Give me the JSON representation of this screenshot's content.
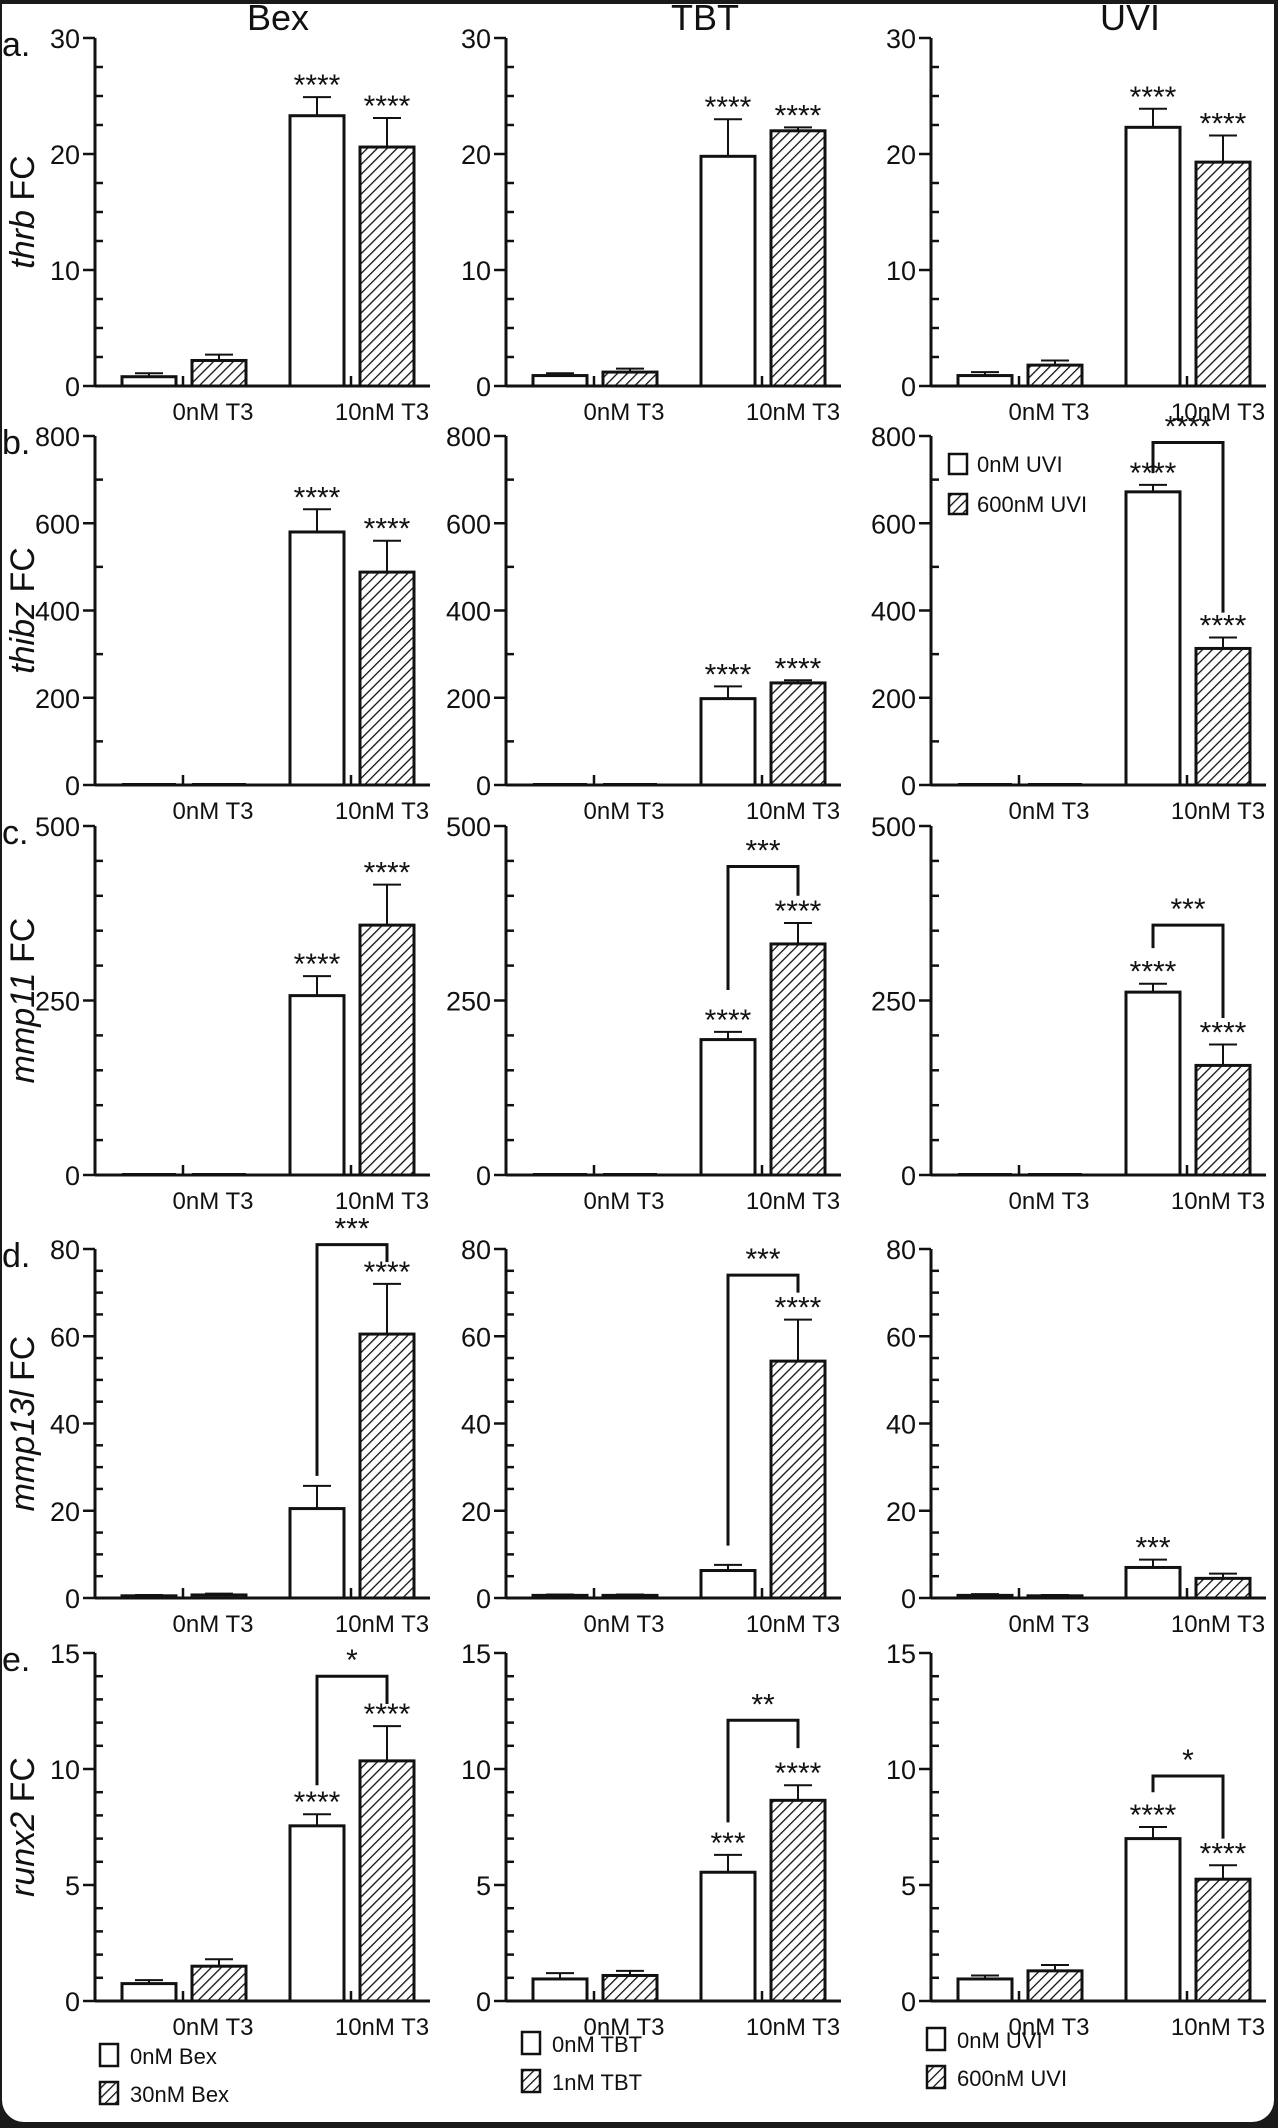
{
  "figure": {
    "column_titles": [
      "Bex",
      "TBT",
      "UVI"
    ],
    "row_labels": [
      "a.",
      "b.",
      "c.",
      "d.",
      "e."
    ],
    "x_categories": [
      "0nM T3",
      "10nM T3"
    ]
  },
  "legends": [
    {
      "items": [
        "0nM Bex",
        "30nM Bex"
      ]
    },
    {
      "items": [
        "0nM TBT",
        "1nM TBT"
      ]
    },
    {
      "items": [
        "0nM UVI",
        "600nM UVI"
      ]
    }
  ],
  "inset_legend": {
    "items": [
      "0nM UVI",
      "600nM UVI"
    ]
  },
  "chart_data": [
    {
      "type": "bar",
      "row": "a",
      "column": "Bex",
      "ylabel_gene": "thrb",
      "ylabel_suffix": " FC",
      "ylim": [
        0,
        30
      ],
      "yticks": [
        0,
        10,
        20,
        30
      ],
      "minor_step": 2.5,
      "categories": [
        "0nM T3",
        "10nM T3"
      ],
      "series": [
        {
          "name": "0nM Bex",
          "values": [
            0.8,
            23.3
          ],
          "errors": [
            0.3,
            1.6
          ]
        },
        {
          "name": "30nM Bex",
          "values": [
            2.2,
            20.6
          ],
          "errors": [
            0.5,
            2.5
          ]
        }
      ],
      "annotations": [
        {
          "category": 1,
          "series": 0,
          "text": "****"
        },
        {
          "category": 1,
          "series": 1,
          "text": "****"
        }
      ],
      "brackets": []
    },
    {
      "type": "bar",
      "row": "a",
      "column": "TBT",
      "ylabel_gene": "",
      "ylabel_suffix": "",
      "ylim": [
        0,
        30
      ],
      "yticks": [
        0,
        10,
        20,
        30
      ],
      "minor_step": 2.5,
      "categories": [
        "0nM T3",
        "10nM T3"
      ],
      "series": [
        {
          "name": "0nM TBT",
          "values": [
            0.9,
            19.8
          ],
          "errors": [
            0.2,
            3.2
          ]
        },
        {
          "name": "1nM TBT",
          "values": [
            1.2,
            22.0
          ],
          "errors": [
            0.3,
            0.3
          ]
        }
      ],
      "annotations": [
        {
          "category": 1,
          "series": 0,
          "text": "****"
        },
        {
          "category": 1,
          "series": 1,
          "text": "****"
        }
      ],
      "brackets": []
    },
    {
      "type": "bar",
      "row": "a",
      "column": "UVI",
      "ylabel_gene": "",
      "ylabel_suffix": "",
      "ylim": [
        0,
        30
      ],
      "yticks": [
        0,
        10,
        20,
        30
      ],
      "minor_step": 2.5,
      "categories": [
        "0nM T3",
        "10nM T3"
      ],
      "series": [
        {
          "name": "0nM UVI",
          "values": [
            0.9,
            22.3
          ],
          "errors": [
            0.3,
            1.6
          ]
        },
        {
          "name": "600nM UVI",
          "values": [
            1.8,
            19.3
          ],
          "errors": [
            0.4,
            2.3
          ]
        }
      ],
      "annotations": [
        {
          "category": 1,
          "series": 0,
          "text": "****"
        },
        {
          "category": 1,
          "series": 1,
          "text": "****"
        }
      ],
      "brackets": []
    },
    {
      "type": "bar",
      "row": "b",
      "column": "Bex",
      "ylabel_gene": "thibz",
      "ylabel_suffix": " FC",
      "ylim": [
        0,
        800
      ],
      "yticks": [
        0,
        200,
        400,
        600,
        800
      ],
      "minor_step": 100,
      "categories": [
        "0nM T3",
        "10nM T3"
      ],
      "series": [
        {
          "name": "0nM Bex",
          "values": [
            1,
            580
          ],
          "errors": [
            0,
            52
          ]
        },
        {
          "name": "30nM Bex",
          "values": [
            1,
            488
          ],
          "errors": [
            0,
            72
          ]
        }
      ],
      "annotations": [
        {
          "category": 1,
          "series": 0,
          "text": "****"
        },
        {
          "category": 1,
          "series": 1,
          "text": "****"
        }
      ],
      "brackets": []
    },
    {
      "type": "bar",
      "row": "b",
      "column": "TBT",
      "ylabel_gene": "",
      "ylabel_suffix": "",
      "ylim": [
        0,
        800
      ],
      "yticks": [
        0,
        200,
        400,
        600,
        800
      ],
      "minor_step": 100,
      "categories": [
        "0nM T3",
        "10nM T3"
      ],
      "series": [
        {
          "name": "0nM TBT",
          "values": [
            1,
            198
          ],
          "errors": [
            0,
            28
          ]
        },
        {
          "name": "1nM TBT",
          "values": [
            1,
            234
          ],
          "errors": [
            0,
            6
          ]
        }
      ],
      "annotations": [
        {
          "category": 1,
          "series": 0,
          "text": "****"
        },
        {
          "category": 1,
          "series": 1,
          "text": "****"
        }
      ],
      "brackets": []
    },
    {
      "type": "bar",
      "row": "b",
      "column": "UVI",
      "ylabel_gene": "",
      "ylabel_suffix": "",
      "ylim": [
        0,
        800
      ],
      "yticks": [
        0,
        200,
        400,
        600,
        800
      ],
      "minor_step": 100,
      "categories": [
        "0nM T3",
        "10nM T3"
      ],
      "series": [
        {
          "name": "0nM UVI",
          "values": [
            1,
            672
          ],
          "errors": [
            0,
            16
          ]
        },
        {
          "name": "600nM UVI",
          "values": [
            1,
            313
          ],
          "errors": [
            0,
            25
          ]
        }
      ],
      "annotations": [
        {
          "category": 1,
          "series": 0,
          "text": "****"
        },
        {
          "category": 1,
          "series": 1,
          "text": "****"
        }
      ],
      "brackets": [
        {
          "text": "****",
          "y": 785,
          "left_end": 715,
          "right_end": 395
        }
      ],
      "legend": "top-left"
    },
    {
      "type": "bar",
      "row": "c",
      "column": "Bex",
      "ylabel_gene": "mmp11",
      "ylabel_suffix": " FC",
      "ylim": [
        0,
        500
      ],
      "yticks": [
        0,
        250,
        500
      ],
      "minor_step": 50,
      "categories": [
        "0nM T3",
        "10nM T3"
      ],
      "series": [
        {
          "name": "0nM Bex",
          "values": [
            1,
            257
          ],
          "errors": [
            0,
            28
          ]
        },
        {
          "name": "30nM Bex",
          "values": [
            2,
            358
          ],
          "errors": [
            0,
            58
          ]
        }
      ],
      "annotations": [
        {
          "category": 1,
          "series": 0,
          "text": "****"
        },
        {
          "category": 1,
          "series": 1,
          "text": "****"
        }
      ],
      "brackets": []
    },
    {
      "type": "bar",
      "row": "c",
      "column": "TBT",
      "ylabel_gene": "",
      "ylabel_suffix": "",
      "ylim": [
        0,
        500
      ],
      "yticks": [
        0,
        250,
        500
      ],
      "minor_step": 50,
      "categories": [
        "0nM T3",
        "10nM T3"
      ],
      "series": [
        {
          "name": "0nM TBT",
          "values": [
            1,
            194
          ],
          "errors": [
            0,
            11
          ]
        },
        {
          "name": "1nM TBT",
          "values": [
            0,
            331
          ],
          "errors": [
            0,
            30
          ]
        }
      ],
      "annotations": [
        {
          "category": 1,
          "series": 0,
          "text": "****"
        },
        {
          "category": 1,
          "series": 1,
          "text": "****"
        }
      ],
      "brackets": [
        {
          "text": "***",
          "y": 442,
          "left_end": 265,
          "right_end": 400
        }
      ]
    },
    {
      "type": "bar",
      "row": "c",
      "column": "UVI",
      "ylabel_gene": "",
      "ylabel_suffix": "",
      "ylim": [
        0,
        500
      ],
      "yticks": [
        0,
        250,
        500
      ],
      "minor_step": 50,
      "categories": [
        "0nM T3",
        "10nM T3"
      ],
      "series": [
        {
          "name": "0nM UVI",
          "values": [
            1,
            262
          ],
          "errors": [
            0,
            12
          ]
        },
        {
          "name": "600nM UVI",
          "values": [
            1,
            157
          ],
          "errors": [
            0,
            30
          ]
        }
      ],
      "annotations": [
        {
          "category": 1,
          "series": 0,
          "text": "****"
        },
        {
          "category": 1,
          "series": 1,
          "text": "****"
        }
      ],
      "brackets": [
        {
          "text": "***",
          "y": 358,
          "left_end": 325,
          "right_end": 225
        }
      ]
    },
    {
      "type": "bar",
      "row": "d",
      "column": "Bex",
      "ylabel_gene": "mmp13l",
      "ylabel_suffix": " FC",
      "ylim": [
        0,
        80
      ],
      "yticks": [
        0,
        20,
        40,
        60,
        80
      ],
      "minor_step": 5,
      "categories": [
        "0nM T3",
        "10nM T3"
      ],
      "series": [
        {
          "name": "0nM Bex",
          "values": [
            0.5,
            20.5
          ],
          "errors": [
            0.2,
            5.2
          ]
        },
        {
          "name": "30nM Bex",
          "values": [
            0.7,
            60.5
          ],
          "errors": [
            0.3,
            11.5
          ]
        }
      ],
      "annotations": [
        {
          "category": 1,
          "series": 0,
          "text": ""
        },
        {
          "category": 1,
          "series": 1,
          "text": "****"
        }
      ],
      "brackets": [
        {
          "text": "***",
          "y": 81,
          "left_end": 28,
          "right_end": 77
        }
      ]
    },
    {
      "type": "bar",
      "row": "d",
      "column": "TBT",
      "ylabel_gene": "",
      "ylabel_suffix": "",
      "ylim": [
        0,
        80
      ],
      "yticks": [
        0,
        20,
        40,
        60,
        80
      ],
      "minor_step": 5,
      "categories": [
        "0nM T3",
        "10nM T3"
      ],
      "series": [
        {
          "name": "0nM TBT",
          "values": [
            0.6,
            6.3
          ],
          "errors": [
            0.2,
            1.3
          ]
        },
        {
          "name": "1nM TBT",
          "values": [
            0.6,
            54.3
          ],
          "errors": [
            0.2,
            9.5
          ]
        }
      ],
      "annotations": [
        {
          "category": 1,
          "series": 0,
          "text": ""
        },
        {
          "category": 1,
          "series": 1,
          "text": "****"
        }
      ],
      "brackets": [
        {
          "text": "***",
          "y": 74,
          "left_end": 12,
          "right_end": 70
        }
      ]
    },
    {
      "type": "bar",
      "row": "d",
      "column": "UVI",
      "ylabel_gene": "",
      "ylabel_suffix": "",
      "ylim": [
        0,
        80
      ],
      "yticks": [
        0,
        20,
        40,
        60,
        80
      ],
      "minor_step": 5,
      "categories": [
        "0nM T3",
        "10nM T3"
      ],
      "series": [
        {
          "name": "0nM UVI",
          "values": [
            0.6,
            7.0
          ],
          "errors": [
            0.3,
            1.8
          ]
        },
        {
          "name": "600nM UVI",
          "values": [
            0.5,
            4.5
          ],
          "errors": [
            0.2,
            1.1
          ]
        }
      ],
      "annotations": [
        {
          "category": 1,
          "series": 0,
          "text": "***"
        },
        {
          "category": 1,
          "series": 1,
          "text": ""
        }
      ],
      "brackets": []
    },
    {
      "type": "bar",
      "row": "e",
      "column": "Bex",
      "ylabel_gene": "runx2",
      "ylabel_suffix": " FC",
      "ylim": [
        0,
        15
      ],
      "yticks": [
        0,
        5,
        10,
        15
      ],
      "minor_step": 1,
      "categories": [
        "0nM T3",
        "10nM T3"
      ],
      "series": [
        {
          "name": "0nM Bex",
          "values": [
            0.75,
            7.55
          ],
          "errors": [
            0.15,
            0.5
          ]
        },
        {
          "name": "30nM Bex",
          "values": [
            1.5,
            10.35
          ],
          "errors": [
            0.3,
            1.5
          ]
        }
      ],
      "annotations": [
        {
          "category": 1,
          "series": 0,
          "text": "****"
        },
        {
          "category": 1,
          "series": 1,
          "text": "****"
        }
      ],
      "brackets": [
        {
          "text": "*",
          "y": 14.0,
          "left_end": 9.3,
          "right_end": 12.8
        }
      ]
    },
    {
      "type": "bar",
      "row": "e",
      "column": "TBT",
      "ylabel_gene": "",
      "ylabel_suffix": "",
      "ylim": [
        0,
        15
      ],
      "yticks": [
        0,
        5,
        10,
        15
      ],
      "minor_step": 1,
      "categories": [
        "0nM T3",
        "10nM T3"
      ],
      "series": [
        {
          "name": "0nM TBT",
          "values": [
            0.95,
            5.55
          ],
          "errors": [
            0.25,
            0.75
          ]
        },
        {
          "name": "1nM TBT",
          "values": [
            1.1,
            8.65
          ],
          "errors": [
            0.2,
            0.65
          ]
        }
      ],
      "annotations": [
        {
          "category": 1,
          "series": 0,
          "text": "***"
        },
        {
          "category": 1,
          "series": 1,
          "text": "****"
        }
      ],
      "brackets": [
        {
          "text": "**",
          "y": 12.1,
          "left_end": 7.7,
          "right_end": 10.9
        }
      ]
    },
    {
      "type": "bar",
      "row": "e",
      "column": "UVI",
      "ylabel_gene": "",
      "ylabel_suffix": "",
      "ylim": [
        0,
        15
      ],
      "yticks": [
        0,
        5,
        10,
        15
      ],
      "minor_step": 1,
      "categories": [
        "0nM T3",
        "10nM T3"
      ],
      "series": [
        {
          "name": "0nM UVI",
          "values": [
            0.95,
            7.0
          ],
          "errors": [
            0.15,
            0.5
          ]
        },
        {
          "name": "600nM UVI",
          "values": [
            1.3,
            5.25
          ],
          "errors": [
            0.25,
            0.6
          ]
        }
      ],
      "annotations": [
        {
          "category": 1,
          "series": 0,
          "text": "****"
        },
        {
          "category": 1,
          "series": 1,
          "text": "****"
        }
      ],
      "brackets": [
        {
          "text": "*",
          "y": 9.7,
          "left_end": 9.0,
          "right_end": 7.0
        }
      ]
    }
  ]
}
